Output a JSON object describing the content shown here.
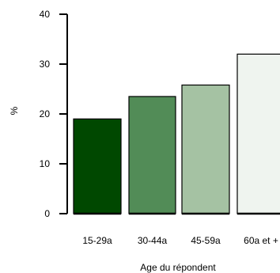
{
  "chart_data": {
    "type": "bar",
    "categories": [
      "15-29a",
      "30-44a",
      "45-59a",
      "60a et +"
    ],
    "values": [
      19,
      23.5,
      25.8,
      32
    ],
    "colors": [
      "#004800",
      "#528c57",
      "#a5c2a3",
      "#eff4ef"
    ],
    "xlabel": "Age du répondent",
    "ylabel": "%",
    "ylim": [
      0,
      40
    ],
    "yticks": [
      0,
      10,
      20,
      30,
      40
    ],
    "grid": false,
    "legend": "none"
  }
}
